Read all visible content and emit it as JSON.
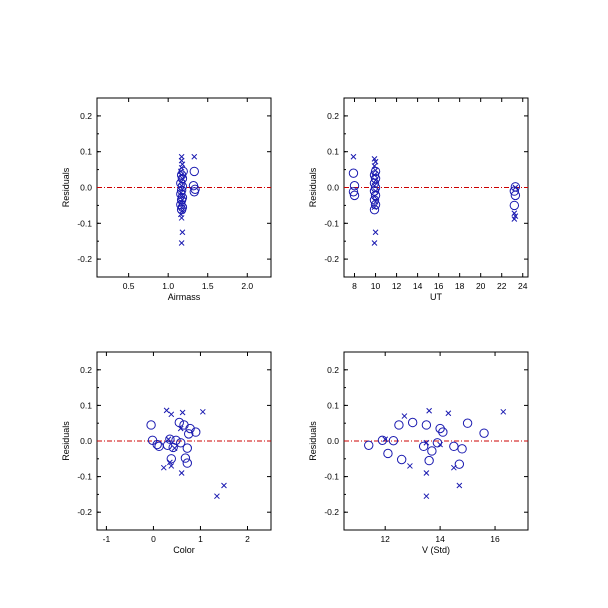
{
  "colors": {
    "marker": "#1a1ab0",
    "zero_line": "#cc0000",
    "axes": "#000000"
  },
  "chart_data": [
    {
      "type": "scatter",
      "xlabel": "Airmass",
      "ylabel": "Residuals",
      "xlim": [
        0.1,
        2.3
      ],
      "ylim": [
        -0.25,
        0.25
      ],
      "xticks": [
        0.5,
        1.0,
        1.5,
        2.0
      ],
      "xtick_labels": [
        "0.5",
        "1.0",
        "1.5",
        "2.0"
      ],
      "yticks": [
        -0.2,
        -0.1,
        0.0,
        0.1,
        0.2
      ],
      "ytick_labels": [
        "-0.2",
        "-0.1",
        "0.0",
        "0.1",
        "0.2"
      ],
      "zero_line": 0.0,
      "grid": false,
      "series": [
        {
          "marker": "x",
          "points": [
            [
              1.17,
              0.086
            ],
            [
              1.17,
              0.075
            ],
            [
              1.18,
              0.065
            ],
            [
              1.17,
              0.055
            ],
            [
              1.16,
              0.045
            ],
            [
              1.17,
              0.035
            ],
            [
              1.18,
              0.025
            ],
            [
              1.16,
              0.015
            ],
            [
              1.17,
              0.005
            ],
            [
              1.18,
              -0.005
            ],
            [
              1.16,
              -0.015
            ],
            [
              1.17,
              -0.025
            ],
            [
              1.18,
              -0.035
            ],
            [
              1.16,
              -0.045
            ],
            [
              1.17,
              -0.055
            ],
            [
              1.18,
              -0.065
            ],
            [
              1.16,
              -0.075
            ],
            [
              1.17,
              -0.085
            ],
            [
              1.18,
              -0.125
            ],
            [
              1.17,
              -0.155
            ],
            [
              1.33,
              0.086
            ]
          ]
        },
        {
          "marker": "o",
          "points": [
            [
              1.19,
              0.045
            ],
            [
              1.17,
              0.035
            ],
            [
              1.18,
              0.025
            ],
            [
              1.16,
              0.012
            ],
            [
              1.18,
              0.003
            ],
            [
              1.17,
              -0.008
            ],
            [
              1.16,
              -0.018
            ],
            [
              1.18,
              -0.028
            ],
            [
              1.17,
              -0.035
            ],
            [
              1.16,
              -0.048
            ],
            [
              1.18,
              -0.055
            ],
            [
              1.17,
              -0.062
            ],
            [
              1.33,
              0.045
            ],
            [
              1.32,
              0.005
            ],
            [
              1.34,
              -0.005
            ],
            [
              1.33,
              -0.012
            ]
          ]
        }
      ]
    },
    {
      "type": "scatter",
      "xlabel": "UT",
      "ylabel": "Residuals",
      "xlim": [
        7,
        24.5
      ],
      "ylim": [
        -0.25,
        0.25
      ],
      "xticks": [
        8,
        10,
        12,
        14,
        16,
        18,
        20,
        22,
        24
      ],
      "xtick_labels": [
        "8",
        "10",
        "12",
        "14",
        "16",
        "18",
        "20",
        "22",
        "24"
      ],
      "yticks": [
        -0.2,
        -0.1,
        0.0,
        0.1,
        0.2
      ],
      "ytick_labels": [
        "-0.2",
        "-0.1",
        "0.0",
        "0.1",
        "0.2"
      ],
      "zero_line": 0.0,
      "grid": false,
      "series": [
        {
          "marker": "x",
          "points": [
            [
              7.9,
              0.086
            ],
            [
              9.9,
              0.08
            ],
            [
              10.0,
              0.072
            ],
            [
              9.9,
              0.06
            ],
            [
              10.0,
              0.048
            ],
            [
              9.9,
              0.035
            ],
            [
              10.0,
              0.02
            ],
            [
              9.9,
              0.005
            ],
            [
              10.0,
              -0.01
            ],
            [
              9.9,
              -0.025
            ],
            [
              10.0,
              -0.04
            ],
            [
              9.9,
              -0.055
            ],
            [
              10.0,
              -0.125
            ],
            [
              9.9,
              -0.155
            ],
            [
              23.2,
              -0.072
            ],
            [
              23.3,
              -0.08
            ],
            [
              23.2,
              -0.088
            ],
            [
              23.3,
              0.0
            ]
          ]
        },
        {
          "marker": "o",
          "points": [
            [
              7.9,
              0.04
            ],
            [
              8.0,
              0.005
            ],
            [
              7.9,
              -0.012
            ],
            [
              8.0,
              -0.022
            ],
            [
              10.0,
              0.045
            ],
            [
              9.9,
              0.035
            ],
            [
              10.0,
              0.025
            ],
            [
              9.9,
              0.012
            ],
            [
              10.0,
              0.0
            ],
            [
              9.9,
              -0.01
            ],
            [
              10.0,
              -0.022
            ],
            [
              9.9,
              -0.035
            ],
            [
              10.0,
              -0.048
            ],
            [
              9.9,
              -0.062
            ],
            [
              23.3,
              0.002
            ],
            [
              23.2,
              -0.01
            ],
            [
              23.3,
              -0.022
            ],
            [
              23.2,
              -0.05
            ]
          ]
        }
      ]
    },
    {
      "type": "scatter",
      "xlabel": "Color",
      "ylabel": "Residuals",
      "xlim": [
        -1.2,
        2.5
      ],
      "ylim": [
        -0.25,
        0.25
      ],
      "xticks": [
        -1,
        0,
        1,
        2
      ],
      "xtick_labels": [
        "-1",
        "0",
        "1",
        "2"
      ],
      "yticks": [
        -0.2,
        -0.1,
        0.0,
        0.1,
        0.2
      ],
      "ytick_labels": [
        "-0.2",
        "-0.1",
        "0.0",
        "0.1",
        "0.2"
      ],
      "zero_line": 0.0,
      "grid": false,
      "series": [
        {
          "marker": "x",
          "points": [
            [
              0.28,
              0.086
            ],
            [
              0.38,
              0.075
            ],
            [
              0.62,
              0.08
            ],
            [
              1.05,
              0.082
            ],
            [
              0.58,
              0.035
            ],
            [
              0.32,
              0.005
            ],
            [
              0.45,
              -0.02
            ],
            [
              0.35,
              -0.06
            ],
            [
              0.22,
              -0.075
            ],
            [
              0.38,
              -0.07
            ],
            [
              0.6,
              -0.09
            ],
            [
              1.5,
              -0.125
            ],
            [
              1.35,
              -0.155
            ]
          ]
        },
        {
          "marker": "o",
          "points": [
            [
              -0.05,
              0.045
            ],
            [
              0.55,
              0.052
            ],
            [
              0.65,
              0.045
            ],
            [
              0.78,
              0.035
            ],
            [
              0.9,
              0.025
            ],
            [
              0.75,
              0.02
            ],
            [
              -0.02,
              0.002
            ],
            [
              0.08,
              -0.01
            ],
            [
              0.35,
              0.005
            ],
            [
              0.48,
              0.002
            ],
            [
              0.58,
              -0.005
            ],
            [
              0.3,
              -0.012
            ],
            [
              0.42,
              -0.018
            ],
            [
              0.72,
              -0.02
            ],
            [
              0.12,
              -0.015
            ],
            [
              0.38,
              -0.05
            ],
            [
              0.68,
              -0.048
            ],
            [
              0.72,
              -0.062
            ]
          ]
        }
      ]
    },
    {
      "type": "scatter",
      "xlabel": "V (Std)",
      "ylabel": "Residuals",
      "xlim": [
        10.5,
        17.2
      ],
      "ylim": [
        -0.25,
        0.25
      ],
      "xticks": [
        12,
        14,
        16
      ],
      "xtick_labels": [
        "12",
        "14",
        "16"
      ],
      "yticks": [
        -0.2,
        -0.1,
        0.0,
        0.1,
        0.2
      ],
      "ytick_labels": [
        "-0.2",
        "-0.1",
        "0.0",
        "0.1",
        "0.2"
      ],
      "zero_line": 0.0,
      "grid": false,
      "series": [
        {
          "marker": "x",
          "points": [
            [
              12.7,
              0.07
            ],
            [
              13.6,
              0.085
            ],
            [
              14.3,
              0.078
            ],
            [
              16.3,
              0.082
            ],
            [
              12.0,
              0.005
            ],
            [
              13.5,
              -0.005
            ],
            [
              14.0,
              -0.01
            ],
            [
              12.9,
              -0.07
            ],
            [
              13.5,
              -0.09
            ],
            [
              14.5,
              -0.075
            ],
            [
              14.7,
              -0.125
            ],
            [
              13.5,
              -0.155
            ]
          ]
        },
        {
          "marker": "o",
          "points": [
            [
              12.5,
              0.045
            ],
            [
              13.0,
              0.052
            ],
            [
              13.5,
              0.045
            ],
            [
              14.0,
              0.035
            ],
            [
              14.1,
              0.025
            ],
            [
              15.0,
              0.05
            ],
            [
              15.6,
              0.022
            ],
            [
              11.4,
              -0.012
            ],
            [
              11.9,
              0.002
            ],
            [
              12.3,
              0.001
            ],
            [
              12.1,
              -0.035
            ],
            [
              12.6,
              -0.052
            ],
            [
              13.4,
              -0.015
            ],
            [
              13.9,
              -0.005
            ],
            [
              13.7,
              -0.028
            ],
            [
              14.5,
              -0.015
            ],
            [
              14.8,
              -0.022
            ],
            [
              13.6,
              -0.055
            ],
            [
              14.7,
              -0.065
            ]
          ]
        }
      ]
    }
  ]
}
